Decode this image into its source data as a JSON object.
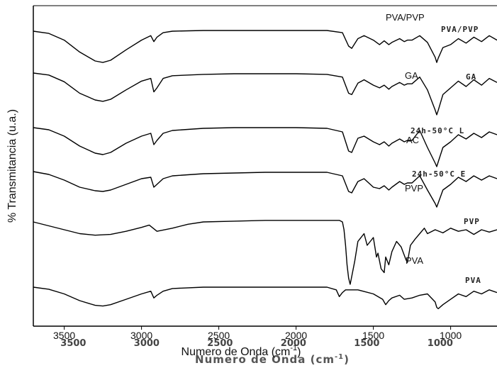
{
  "chart_data": {
    "type": "line",
    "title": "",
    "xlabel": "Numero de Onda (cm-1)",
    "xlabel_ghost": "Numero de Onda (cm-1)",
    "ylabel": "% Transmitancia (u.a.)",
    "xlim": [
      3700,
      700
    ],
    "x_reversed": true,
    "yticks_shown": false,
    "grid": false,
    "x_ticks": [
      3500,
      3000,
      2500,
      2000,
      1500,
      1000
    ],
    "x_ticks_ghost": [
      3500,
      3000,
      2500,
      2000,
      1500,
      1000
    ],
    "x_tick_labels_ghost": [
      "3500",
      "3000",
      "2500",
      "2000",
      "1500",
      "1000"
    ],
    "series": [
      {
        "name": "PVA/PVP",
        "x": [
          3700,
          3600,
          3500,
          3400,
          3300,
          3250,
          3200,
          3100,
          3000,
          2940,
          2920,
          2900,
          2860,
          2800,
          2600,
          2400,
          2200,
          2000,
          1800,
          1700,
          1660,
          1640,
          1600,
          1560,
          1500,
          1460,
          1430,
          1400,
          1380,
          1330,
          1300,
          1280,
          1250,
          1200,
          1150,
          1100,
          1090,
          1080,
          1050,
          1000,
          950,
          900,
          850,
          800,
          750,
          700
        ],
        "y": [
          0,
          -3,
          -12,
          -28,
          -40,
          -42,
          -39,
          -25,
          -12,
          -6,
          -14,
          -8,
          -2,
          0,
          1,
          1,
          1,
          1,
          1,
          -2,
          -20,
          -23,
          -10,
          -6,
          -12,
          -18,
          -13,
          -18,
          -15,
          -10,
          -14,
          -12,
          -12,
          -6,
          -15,
          -35,
          -42,
          -36,
          -22,
          -18,
          -10,
          -16,
          -8,
          -14,
          -6,
          -12
        ]
      },
      {
        "name": "GA",
        "x": [
          3700,
          3600,
          3500,
          3400,
          3300,
          3250,
          3200,
          3100,
          3000,
          2940,
          2920,
          2900,
          2860,
          2800,
          2600,
          2400,
          2200,
          2000,
          1800,
          1700,
          1660,
          1640,
          1600,
          1560,
          1500,
          1460,
          1430,
          1400,
          1380,
          1330,
          1300,
          1280,
          1250,
          1200,
          1150,
          1100,
          1090,
          1080,
          1050,
          1000,
          950,
          900,
          850,
          800,
          750,
          700
        ],
        "y": [
          0,
          -3,
          -13,
          -30,
          -40,
          -42,
          -39,
          -25,
          -12,
          -8,
          -28,
          -22,
          -8,
          -4,
          -2,
          -1,
          -1,
          -1,
          -2,
          -6,
          -30,
          -32,
          -15,
          -10,
          -18,
          -22,
          -18,
          -24,
          -20,
          -14,
          -18,
          -16,
          -16,
          -6,
          -25,
          -55,
          -62,
          -55,
          -32,
          -22,
          -12,
          -20,
          -10,
          -18,
          -8,
          -14
        ]
      },
      {
        "name": "24h-50°C L",
        "x": [
          3700,
          3600,
          3500,
          3400,
          3300,
          3250,
          3200,
          3100,
          3000,
          2940,
          2920,
          2900,
          2860,
          2800,
          2600,
          2400,
          2200,
          2000,
          1800,
          1700,
          1660,
          1640,
          1600,
          1560,
          1500,
          1460,
          1430,
          1400,
          1380,
          1330,
          1300,
          1280,
          1250,
          1200,
          1150,
          1100,
          1090,
          1080,
          1050,
          1000,
          950,
          900,
          850,
          800,
          750,
          700
        ],
        "y": [
          0,
          -3,
          -12,
          -26,
          -36,
          -38,
          -35,
          -22,
          -12,
          -8,
          -24,
          -18,
          -8,
          -4,
          -1,
          0,
          0,
          0,
          -1,
          -6,
          -33,
          -35,
          -15,
          -12,
          -20,
          -24,
          -20,
          -26,
          -22,
          -16,
          -20,
          -18,
          -18,
          -4,
          -28,
          -50,
          -55,
          -48,
          -28,
          -20,
          -10,
          -16,
          -8,
          -14,
          -6,
          -10
        ]
      },
      {
        "name": "24h-50°C E",
        "x": [
          3700,
          3600,
          3500,
          3400,
          3300,
          3250,
          3200,
          3100,
          3000,
          2940,
          2920,
          2900,
          2860,
          2800,
          2600,
          2400,
          2200,
          2000,
          1800,
          1700,
          1660,
          1640,
          1600,
          1560,
          1500,
          1460,
          1430,
          1400,
          1380,
          1330,
          1300,
          1280,
          1250,
          1200,
          1150,
          1100,
          1090,
          1080,
          1050,
          1000,
          950,
          900,
          850,
          800,
          750,
          700
        ],
        "y": [
          0,
          -4,
          -12,
          -22,
          -27,
          -28,
          -26,
          -18,
          -10,
          -8,
          -22,
          -18,
          -10,
          -6,
          -3,
          -2,
          -1,
          -1,
          -1,
          -6,
          -28,
          -30,
          -14,
          -10,
          -22,
          -24,
          -20,
          -26,
          -22,
          -14,
          -18,
          -16,
          -16,
          -6,
          -26,
          -45,
          -50,
          -44,
          -26,
          -18,
          -8,
          -14,
          -6,
          -12,
          -6,
          -10
        ]
      },
      {
        "name": "PVP",
        "x": [
          3700,
          3600,
          3500,
          3400,
          3300,
          3200,
          3100,
          3000,
          2950,
          2900,
          2800,
          2700,
          2600,
          2400,
          2200,
          2000,
          1800,
          1720,
          1700,
          1690,
          1680,
          1670,
          1660,
          1650,
          1640,
          1620,
          1600,
          1560,
          1540,
          1500,
          1480,
          1470,
          1450,
          1430,
          1420,
          1400,
          1380,
          1350,
          1320,
          1290,
          1280,
          1260,
          1230,
          1200,
          1170,
          1150,
          1100,
          1050,
          1000,
          950,
          900,
          850,
          800,
          750,
          700
        ],
        "y": [
          0,
          -5,
          -10,
          -15,
          -17,
          -16,
          -12,
          -7,
          -4,
          -12,
          -8,
          -3,
          0,
          1,
          2,
          2,
          2,
          2,
          0,
          -10,
          -30,
          -55,
          -72,
          -80,
          -70,
          -50,
          -25,
          -15,
          -30,
          -20,
          -45,
          -40,
          -60,
          -65,
          -45,
          -55,
          -38,
          -25,
          -32,
          -48,
          -52,
          -30,
          -22,
          -15,
          -8,
          -15,
          -10,
          -14,
          -8,
          -12,
          -10,
          -16,
          -10,
          -13,
          -10
        ]
      },
      {
        "name": "PVA",
        "x": [
          3700,
          3600,
          3500,
          3400,
          3300,
          3250,
          3200,
          3100,
          3000,
          2940,
          2920,
          2900,
          2860,
          2800,
          2600,
          2400,
          2200,
          2000,
          1800,
          1740,
          1720,
          1700,
          1680,
          1600,
          1500,
          1440,
          1420,
          1400,
          1380,
          1330,
          1300,
          1250,
          1200,
          1150,
          1100,
          1090,
          1080,
          1050,
          1000,
          950,
          900,
          850,
          800,
          750,
          700
        ],
        "y": [
          0,
          -3,
          -10,
          -20,
          -27,
          -28,
          -26,
          -18,
          -10,
          -6,
          -16,
          -12,
          -6,
          -2,
          0,
          0,
          0,
          0,
          0,
          -4,
          -14,
          -8,
          -4,
          -4,
          -10,
          -18,
          -26,
          -20,
          -16,
          -12,
          -18,
          -16,
          -12,
          -10,
          -22,
          -30,
          -32,
          -26,
          -18,
          -10,
          -14,
          -6,
          -10,
          -4,
          -8
        ]
      }
    ],
    "annotations_left": [
      "PVA/PVP",
      "GA",
      "AC",
      "PVP",
      "PVA"
    ],
    "annotations_right": [
      "PVA/PVP",
      "GA",
      "24h-50°C L",
      "24h-50°C E",
      "PVP",
      "PVA"
    ]
  }
}
